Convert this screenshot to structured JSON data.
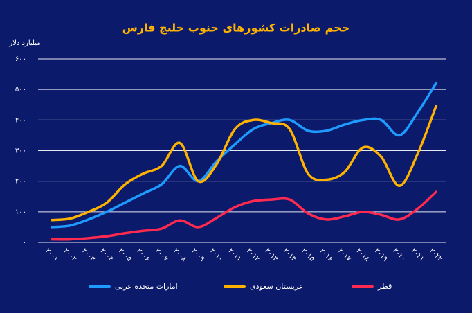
{
  "chart_data": {
    "type": "line",
    "title": "حجم صادرات کشورهای جنوب خلیج فارس",
    "y_label": "میلیارد دلار",
    "categories": [
      "۲۰۰۱",
      "۲۰۰۲",
      "۲۰۰۳",
      "۲۰۰۴",
      "۲۰۰۵",
      "۲۰۰۶",
      "۲۰۰۷",
      "۲۰۰۸",
      "۲۰۰۹",
      "۲۰۱۰",
      "۲۰۱۱",
      "۲۰۱۲",
      "۲۰۱۳",
      "۲۰۱۴",
      "۲۰۱۵",
      "۲۰۱۶",
      "۲۰۱۷",
      "۲۰۱۸",
      "۲۰۱۹",
      "۲۰۲۰",
      "۲۰۲۱",
      "۲۰۲۲"
    ],
    "series": [
      {
        "name": "امارات متحده عربی",
        "color": "#1e9bff",
        "values": [
          50,
          55,
          75,
          100,
          130,
          160,
          190,
          250,
          200,
          265,
          320,
          370,
          390,
          400,
          365,
          365,
          385,
          400,
          400,
          350,
          425,
          520
        ]
      },
      {
        "name": "عربستان سعودی",
        "color": "#ffb300",
        "values": [
          73,
          78,
          100,
          130,
          190,
          225,
          250,
          325,
          200,
          255,
          370,
          400,
          390,
          370,
          225,
          205,
          230,
          310,
          280,
          185,
          290,
          445
        ]
      },
      {
        "name": "قطر",
        "color": "#ff2a4f",
        "values": [
          10,
          10,
          14,
          20,
          30,
          38,
          45,
          72,
          50,
          80,
          115,
          135,
          140,
          140,
          95,
          75,
          85,
          100,
          90,
          75,
          110,
          165
        ]
      }
    ],
    "ylim": [
      0,
      600
    ],
    "yticks": [
      {
        "value": 0,
        "label": "۰"
      },
      {
        "value": 100,
        "label": "۱۰۰"
      },
      {
        "value": 200,
        "label": "۲۰۰"
      },
      {
        "value": 300,
        "label": "۳۰۰"
      },
      {
        "value": 400,
        "label": "۴۰۰"
      },
      {
        "value": 500,
        "label": "۵۰۰"
      },
      {
        "value": 600,
        "label": "۶۰۰"
      }
    ],
    "grid": true
  }
}
